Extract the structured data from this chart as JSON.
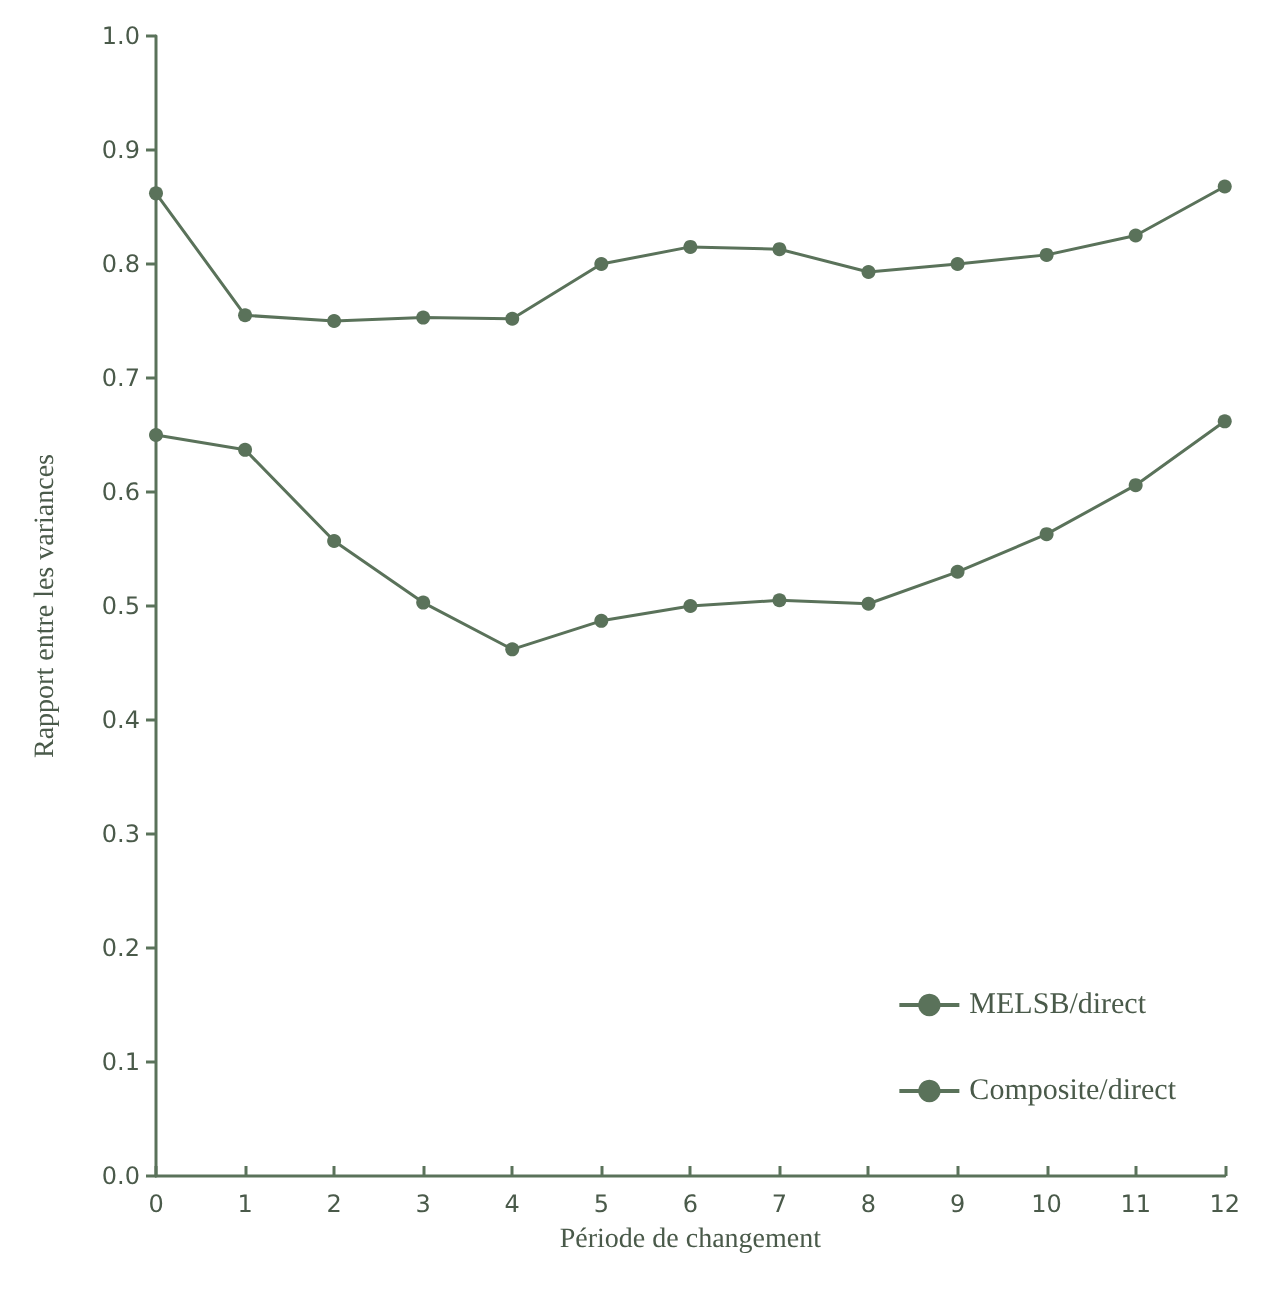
{
  "chart_data": {
    "type": "line",
    "xlabel": "Période de changement",
    "ylabel": "Rapport entre les variances",
    "x": [
      0,
      1,
      2,
      3,
      4,
      5,
      6,
      7,
      8,
      9,
      10,
      11,
      12
    ],
    "series": [
      {
        "name": "MELSB/direct",
        "color": "#5a725a",
        "values": [
          0.65,
          0.637,
          0.557,
          0.503,
          0.462,
          0.487,
          0.5,
          0.505,
          0.502,
          0.53,
          0.563,
          0.606,
          0.662
        ]
      },
      {
        "name": "Composite/direct",
        "color": "#5a725a",
        "values": [
          0.862,
          0.755,
          0.75,
          0.753,
          0.752,
          0.8,
          0.815,
          0.813,
          0.793,
          0.8,
          0.808,
          0.825,
          0.868
        ]
      }
    ],
    "xlim": [
      0,
      12
    ],
    "xticks": [
      0,
      1,
      2,
      3,
      4,
      5,
      6,
      7,
      8,
      9,
      10,
      11,
      12
    ],
    "ylim": [
      0,
      1
    ],
    "yticks": [
      {
        "value": 0,
        "label": "0.0"
      },
      0.1,
      0.2,
      0.3,
      0.4,
      0.5,
      0.6,
      0.7,
      0.8,
      0.9,
      {
        "value": 1,
        "label": "1.0"
      }
    ],
    "grid": false,
    "legend": "bottom right",
    "marker": "circle",
    "line_style": "solid"
  }
}
